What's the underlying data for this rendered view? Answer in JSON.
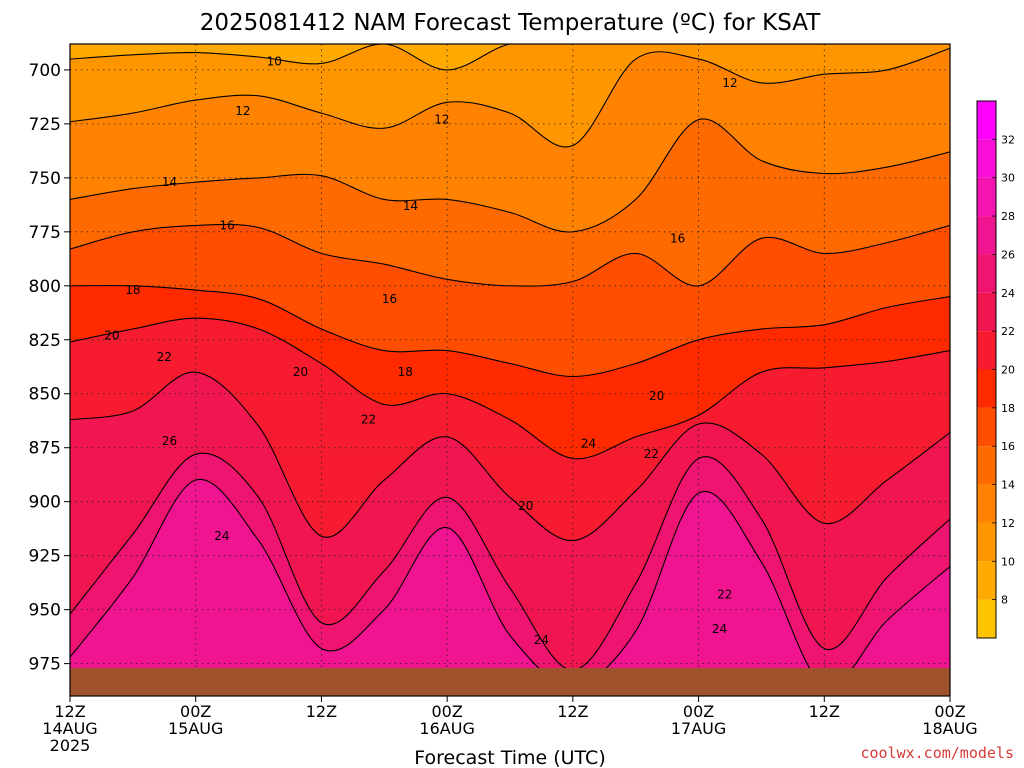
{
  "chart_data": {
    "type": "heatmap",
    "title": "2025081412 NAM Forecast Temperature (ºC) for KSAT",
    "xlabel": "Forecast Time (UTC)",
    "ylabel": "",
    "credit": "coolwx.com/models",
    "x_ticks": [
      {
        "hour": 0,
        "line1": "12Z",
        "line2": "14AUG",
        "line3": "2025"
      },
      {
        "hour": 12,
        "line1": "00Z",
        "line2": "15AUG",
        "line3": ""
      },
      {
        "hour": 24,
        "line1": "12Z",
        "line2": "",
        "line3": ""
      },
      {
        "hour": 36,
        "line1": "00Z",
        "line2": "16AUG",
        "line3": ""
      },
      {
        "hour": 48,
        "line1": "12Z",
        "line2": "",
        "line3": ""
      },
      {
        "hour": 60,
        "line1": "00Z",
        "line2": "17AUG",
        "line3": ""
      },
      {
        "hour": 72,
        "line1": "12Z",
        "line2": "",
        "line3": ""
      },
      {
        "hour": 84,
        "line1": "00Z",
        "line2": "18AUG",
        "line3": ""
      }
    ],
    "x_range": [
      0,
      84
    ],
    "y_ticks": [
      700,
      725,
      750,
      775,
      800,
      825,
      850,
      875,
      900,
      925,
      950,
      975
    ],
    "y_range": [
      688,
      990
    ],
    "surface_pressure": 977,
    "grid": true,
    "colorbar": {
      "levels": [
        8,
        10,
        12,
        14,
        16,
        18,
        20,
        22,
        24,
        26,
        28,
        30,
        32
      ],
      "range": [
        6,
        34
      ],
      "colors": [
        "#ffc400",
        "#ffaa00",
        "#ff9600",
        "#ff8200",
        "#ff6a00",
        "#ff4e00",
        "#ff2a00",
        "#f71b30",
        "#f21650",
        "#ef1470",
        "#f01490",
        "#f414b2",
        "#f80ed6",
        "#ff00ff"
      ]
    },
    "contour_levels": [
      10,
      12,
      14,
      16,
      18,
      20,
      22,
      24,
      26
    ],
    "hours": [
      0,
      6,
      12,
      18,
      24,
      30,
      36,
      42,
      48,
      54,
      60,
      66,
      72,
      78,
      84
    ],
    "isotherm_pressure": [
      {
        "level": 10,
        "p": [
          695,
          693,
          692,
          694,
          697,
          688,
          700,
          688,
          688,
          688,
          688,
          688,
          688,
          688,
          688
        ]
      },
      {
        "level": 12,
        "p": [
          724,
          720,
          714,
          712,
          720,
          727,
          715,
          720,
          735,
          695,
          695,
          706,
          702,
          700,
          690
        ]
      },
      {
        "level": 14,
        "p": [
          760,
          755,
          752,
          750,
          749,
          760,
          760,
          766,
          775,
          760,
          723,
          742,
          748,
          745,
          738
        ]
      },
      {
        "level": 16,
        "p": [
          783,
          775,
          772,
          773,
          785,
          790,
          797,
          800,
          798,
          785,
          800,
          778,
          785,
          780,
          772
        ]
      },
      {
        "level": 18,
        "p": [
          800,
          800,
          802,
          806,
          820,
          830,
          830,
          836,
          842,
          836,
          825,
          820,
          818,
          810,
          805
        ]
      },
      {
        "level": 20,
        "p": [
          826,
          820,
          815,
          820,
          836,
          855,
          850,
          862,
          880,
          870,
          860,
          840,
          838,
          835,
          830
        ]
      },
      {
        "level": 22,
        "p": [
          862,
          858,
          840,
          865,
          916,
          890,
          870,
          898,
          918,
          895,
          864,
          878,
          910,
          890,
          868
        ]
      },
      {
        "level": 24,
        "p": [
          952,
          915,
          878,
          898,
          956,
          932,
          898,
          940,
          978,
          938,
          880,
          908,
          968,
          935,
          908
        ]
      },
      {
        "level": 26,
        "p": [
          972,
          935,
          890,
          918,
          968,
          950,
          912,
          962,
          985,
          960,
          896,
          928,
          985,
          955,
          930
        ]
      }
    ],
    "contour_labels": [
      {
        "level": 10,
        "hour": 19.5,
        "p": 696
      },
      {
        "level": 12,
        "hour": 16.5,
        "p": 719
      },
      {
        "level": 12,
        "hour": 35.5,
        "p": 723
      },
      {
        "level": 12,
        "hour": 63,
        "p": 706
      },
      {
        "level": 14,
        "hour": 9.5,
        "p": 752
      },
      {
        "level": 14,
        "hour": 32.5,
        "p": 763
      },
      {
        "level": 16,
        "hour": 15,
        "p": 772
      },
      {
        "level": 16,
        "hour": 30.5,
        "p": 806
      },
      {
        "level": 16,
        "hour": 58,
        "p": 778
      },
      {
        "level": 18,
        "hour": 6,
        "p": 802
      },
      {
        "level": 18,
        "hour": 32,
        "p": 840
      },
      {
        "level": 20,
        "hour": 4,
        "p": 823
      },
      {
        "level": 20,
        "hour": 22,
        "p": 840
      },
      {
        "level": 20,
        "hour": 43.5,
        "p": 902
      },
      {
        "level": 20,
        "hour": 56,
        "p": 851
      },
      {
        "level": 22,
        "hour": 9,
        "p": 833
      },
      {
        "level": 22,
        "hour": 28.5,
        "p": 862
      },
      {
        "level": 22,
        "hour": 55.5,
        "p": 878
      },
      {
        "level": 22,
        "hour": 62.5,
        "p": 943
      },
      {
        "level": 24,
        "hour": 14.5,
        "p": 916
      },
      {
        "level": 24,
        "hour": 45,
        "p": 964
      },
      {
        "level": 24,
        "hour": 49.5,
        "p": 873
      },
      {
        "level": 24,
        "hour": 62,
        "p": 959
      },
      {
        "level": 26,
        "hour": 9.5,
        "p": 872
      }
    ]
  }
}
